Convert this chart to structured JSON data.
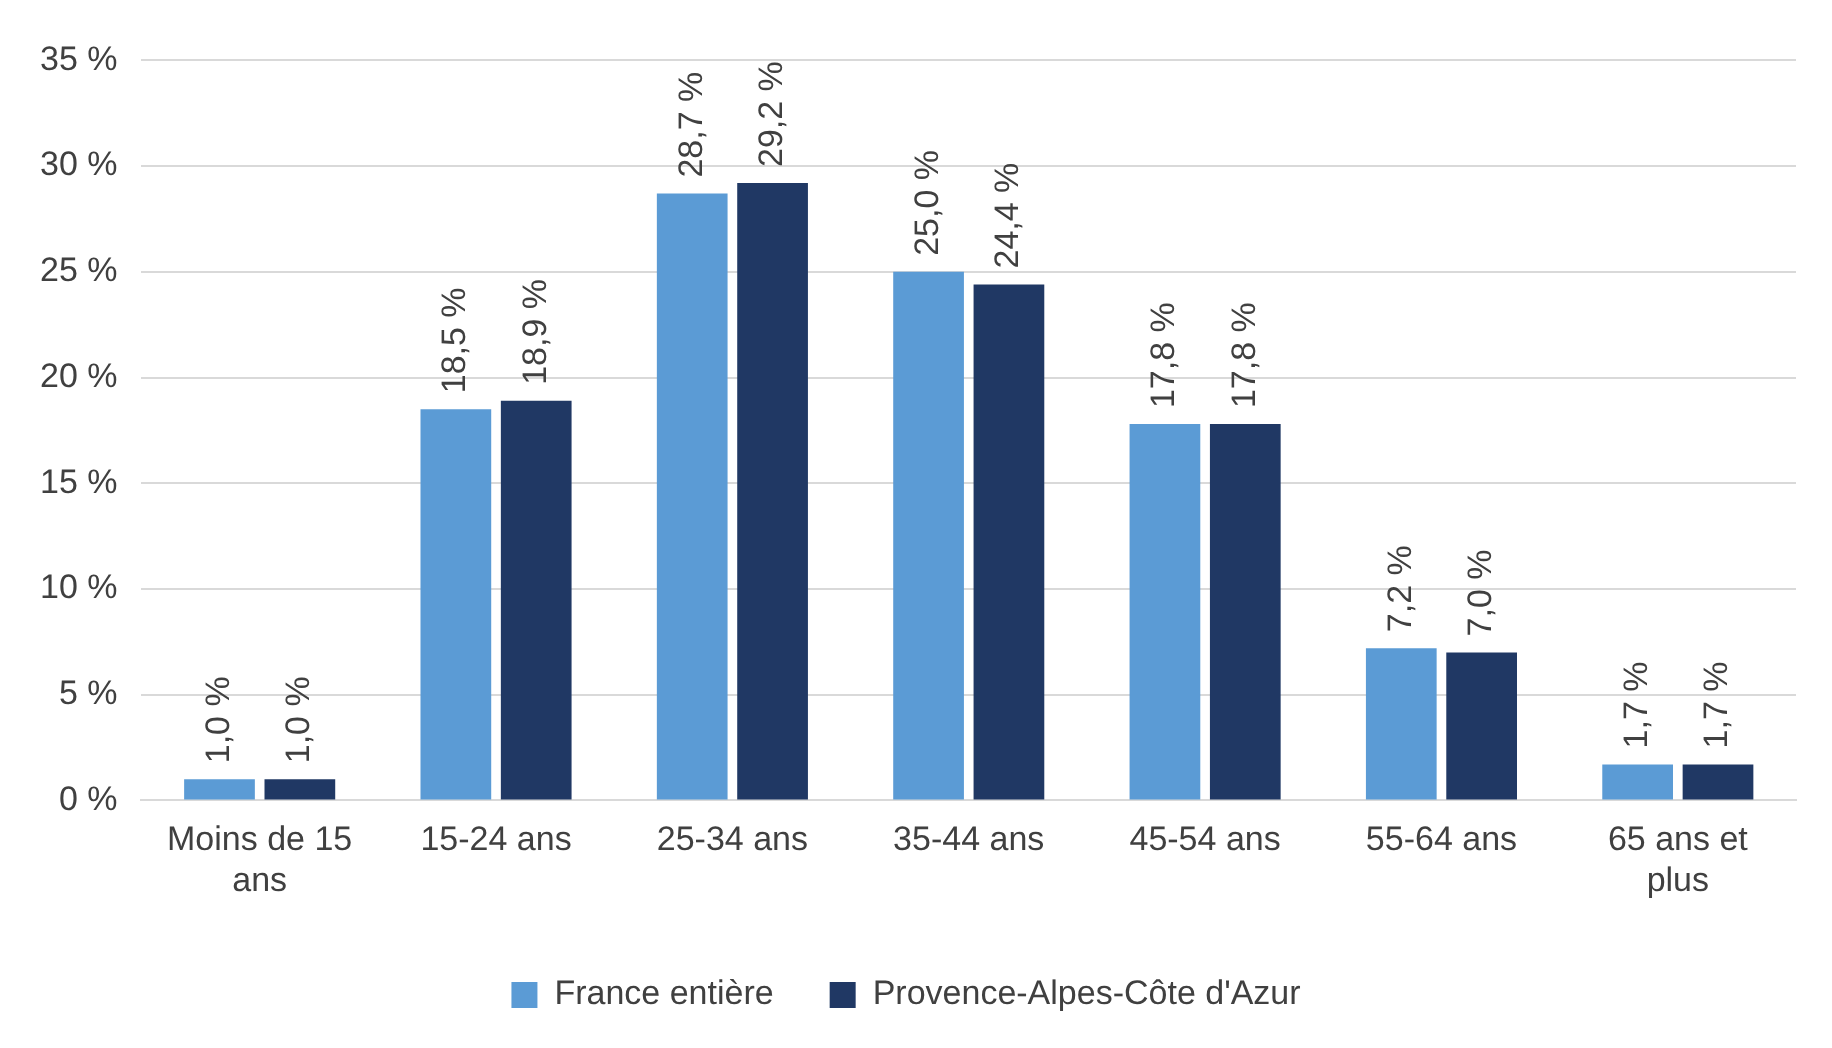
{
  "chart_data": {
    "type": "bar",
    "categories": [
      "Moins de 15 ans",
      "15-24 ans",
      "25-34 ans",
      "35-44 ans",
      "45-54 ans",
      "55-64 ans",
      "65 ans et plus"
    ],
    "series": [
      {
        "name": "France entière",
        "color": "#5b9bd5",
        "values": [
          1.0,
          18.5,
          28.7,
          25.0,
          17.8,
          7.2,
          1.7
        ],
        "value_labels": [
          "1,0 %",
          "18,5 %",
          "28,7 %",
          "25,0 %",
          "17,8 %",
          "7,2 %",
          "1,7 %"
        ]
      },
      {
        "name": "Provence-Alpes-Côte d'Azur",
        "color": "#203864",
        "values": [
          1.0,
          18.9,
          29.2,
          24.4,
          17.8,
          7.0,
          1.7
        ],
        "value_labels": [
          "1,0 %",
          "18,9 %",
          "29,2 %",
          "24,4 %",
          "17,8 %",
          "7,0 %",
          "1,7 %"
        ]
      }
    ],
    "ylim": [
      0,
      35
    ],
    "yticks": [
      {
        "value": 0,
        "label": "0 %"
      },
      {
        "value": 5,
        "label": "5 %"
      },
      {
        "value": 10,
        "label": "10 %"
      },
      {
        "value": 15,
        "label": "15 %"
      },
      {
        "value": 20,
        "label": "20 %"
      },
      {
        "value": 25,
        "label": "25 %"
      },
      {
        "value": 30,
        "label": "30 %"
      },
      {
        "value": 35,
        "label": "35 %"
      }
    ],
    "grid": "y",
    "legend": "bottom"
  }
}
